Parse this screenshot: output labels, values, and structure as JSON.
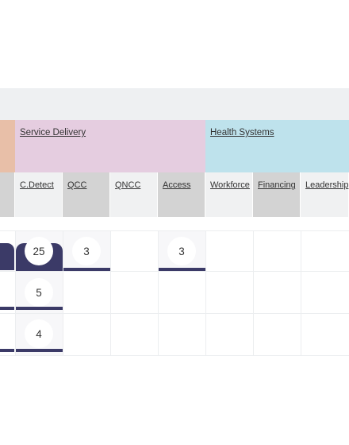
{
  "groups": {
    "service_delivery": "Service Delivery",
    "health_systems": "Health Systems"
  },
  "columns": {
    "c_detect": "C.Detect",
    "qcc": "QCC",
    "qncc": "QNCC",
    "access": "Access",
    "workforce": "Workforce",
    "financing": "Financing",
    "leadership": "Leadership"
  },
  "rows": [
    {
      "c_detect": "25",
      "qcc": "3",
      "access": "3"
    },
    {
      "c_detect": "5"
    },
    {
      "c_detect": "4"
    }
  ],
  "colors": {
    "navy": "#3b3a67",
    "service_delivery_bg": "#e5cde0",
    "health_systems_bg": "#bee2ec",
    "left_group_bg": "#e8bfa8"
  }
}
